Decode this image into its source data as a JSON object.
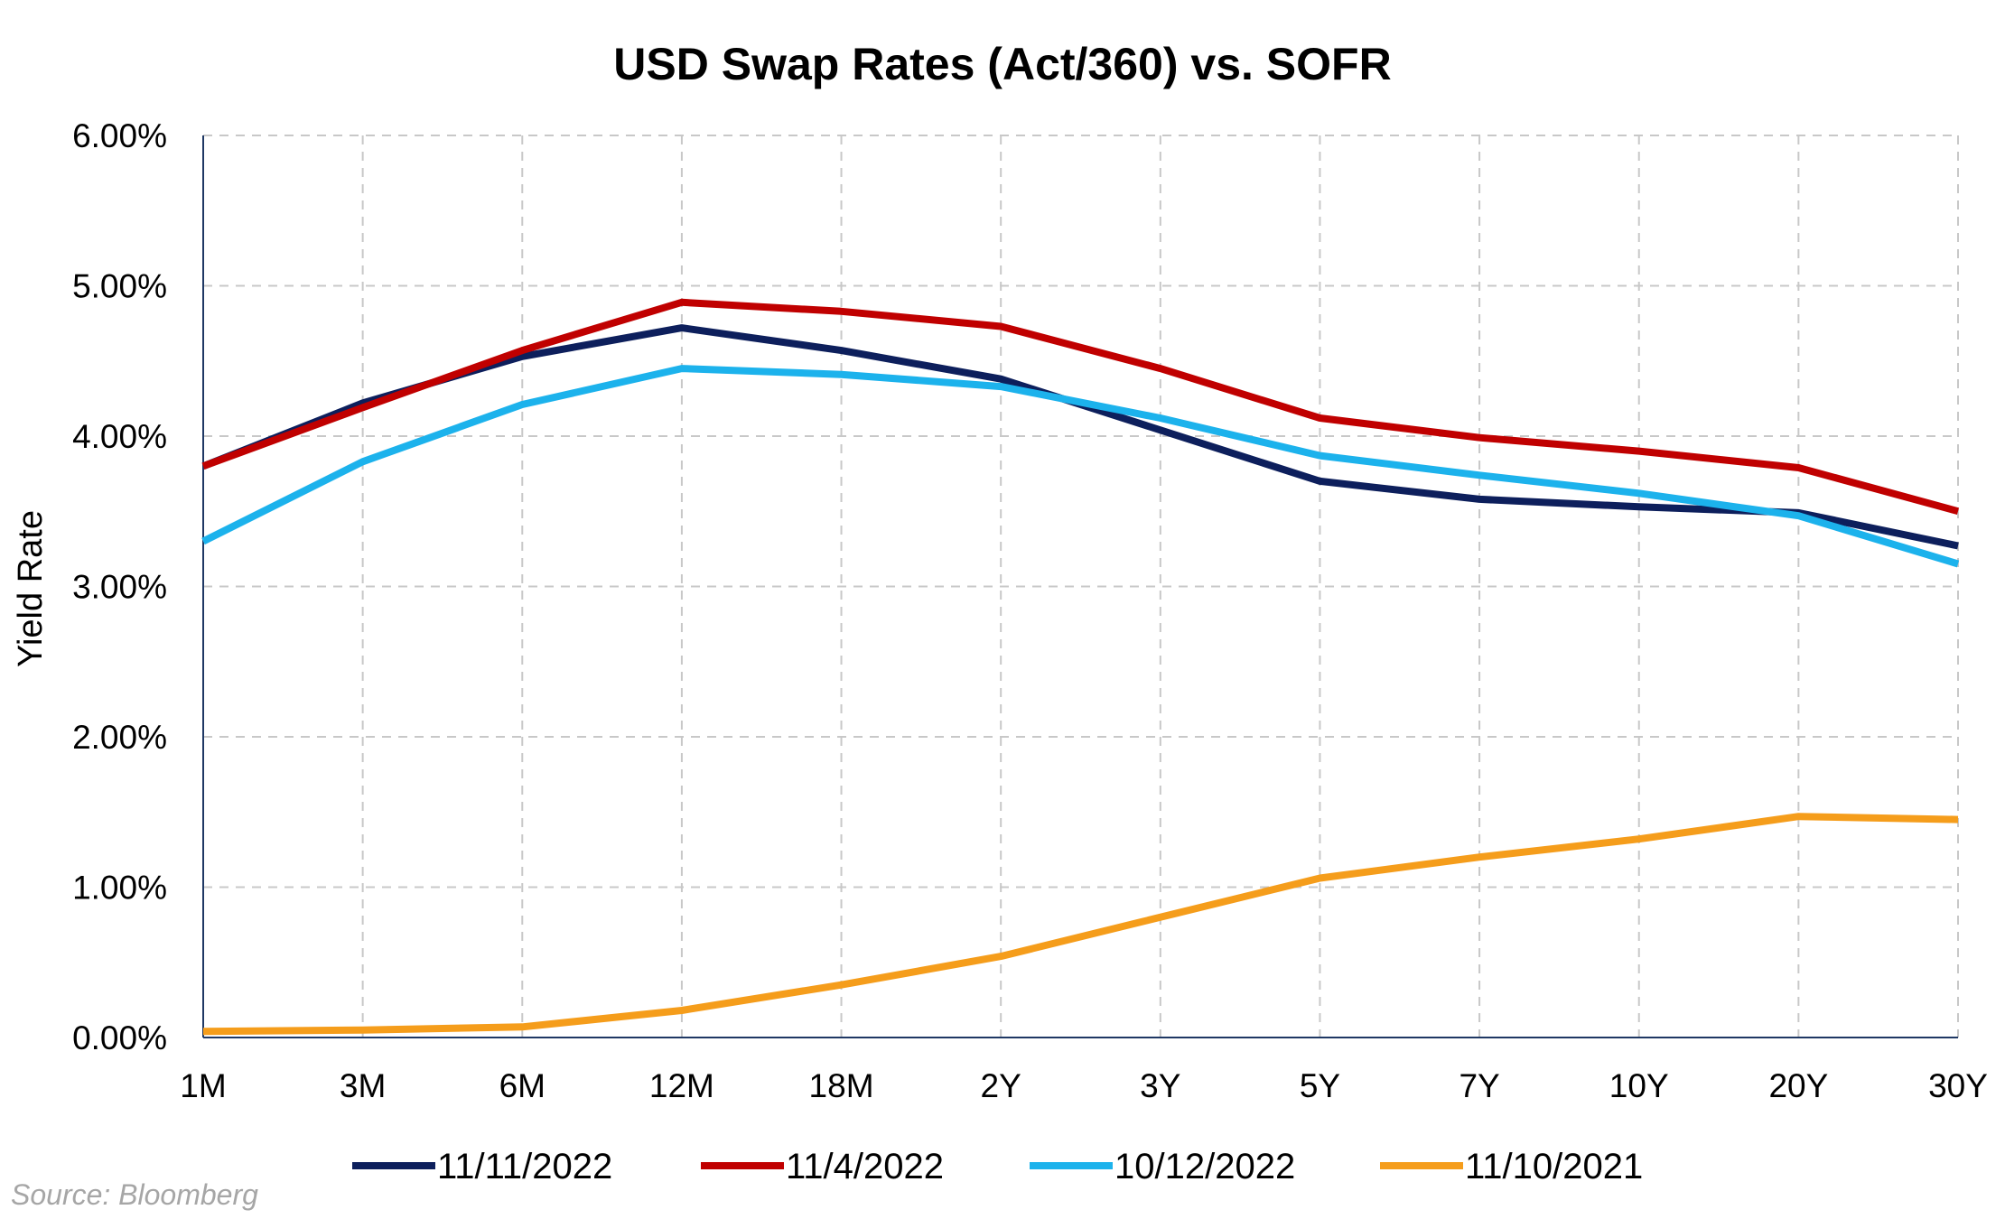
{
  "source_note": "Source: Bloomberg",
  "chart_data": {
    "type": "line",
    "title": "USD Swap Rates (Act/360) vs. SOFR",
    "xlabel": "",
    "ylabel": "Yield Rate",
    "categories": [
      "1M",
      "3M",
      "6M",
      "12M",
      "18M",
      "2Y",
      "3Y",
      "5Y",
      "7Y",
      "10Y",
      "20Y",
      "30Y"
    ],
    "ylim": [
      0,
      0.06
    ],
    "yticks": [
      0,
      0.01,
      0.02,
      0.03,
      0.04,
      0.05,
      0.06
    ],
    "ytick_labels": [
      "0.00%",
      "1.00%",
      "2.00%",
      "3.00%",
      "4.00%",
      "5.00%",
      "6.00%"
    ],
    "grid": true,
    "legend_position": "bottom",
    "series": [
      {
        "name": "11/11/2022",
        "color": "#0d1f5c",
        "values": [
          0.038,
          0.0422,
          0.0453,
          0.0472,
          0.0457,
          0.0438,
          0.0404,
          0.037,
          0.0358,
          0.0353,
          0.0349,
          0.0327
        ]
      },
      {
        "name": "11/4/2022",
        "color": "#c00000",
        "values": [
          0.038,
          0.0419,
          0.0457,
          0.0489,
          0.0483,
          0.0473,
          0.0445,
          0.0412,
          0.0399,
          0.039,
          0.0379,
          0.035
        ]
      },
      {
        "name": "10/12/2022",
        "color": "#1cb2ec",
        "values": [
          0.033,
          0.0383,
          0.0421,
          0.0445,
          0.0441,
          0.0433,
          0.0412,
          0.0387,
          0.0374,
          0.0362,
          0.0347,
          0.0315
        ]
      },
      {
        "name": "11/10/2021",
        "color": "#f59d1b",
        "values": [
          0.0004,
          0.0005,
          0.0007,
          0.0018,
          0.0035,
          0.0054,
          0.008,
          0.0106,
          0.012,
          0.0132,
          0.0147,
          0.0145
        ]
      }
    ]
  }
}
